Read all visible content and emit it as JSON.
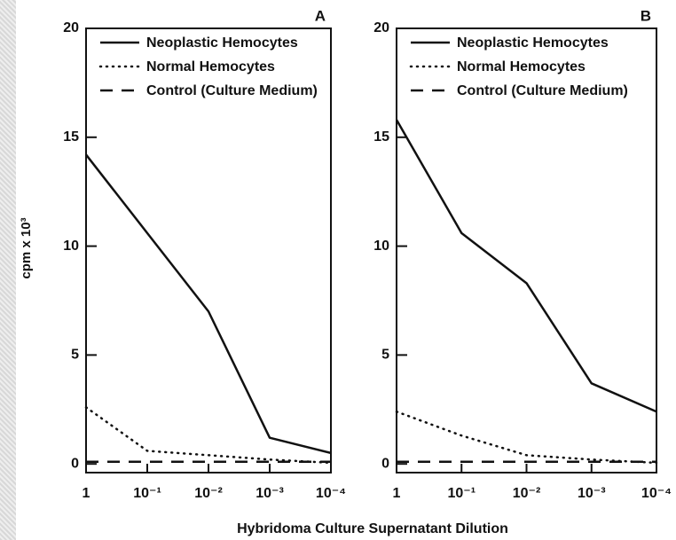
{
  "chart_data": [
    {
      "type": "line",
      "title": "A",
      "ylabel": "cpm x 10³",
      "xlabel": "Hybridoma Culture Supernatant Dilution",
      "xscale": "log",
      "xlim": [
        1,
        0.0001
      ],
      "xticks": [
        1,
        {
          "value": 0.1,
          "label": "10⁻¹"
        },
        {
          "value": 0.01,
          "label": "10⁻²"
        },
        {
          "value": 0.001,
          "label": "10⁻³"
        },
        {
          "value": 0.0001,
          "label": "10⁻⁴"
        }
      ],
      "ylim": [
        -0.4,
        20
      ],
      "yticks": [
        0,
        5,
        10,
        15,
        20
      ],
      "x": [
        1,
        0.1,
        0.01,
        0.001,
        0.0001
      ],
      "series": [
        {
          "name": "Neoplastic Hemocytes",
          "color": "#111111",
          "style": "solid",
          "values": [
            14.2,
            10.6,
            7.0,
            1.2,
            0.5
          ]
        },
        {
          "name": "Normal Hemocytes",
          "color": "#111111",
          "style": "dotted",
          "values": [
            2.6,
            0.6,
            0.4,
            0.2,
            0.05
          ]
        },
        {
          "name": "Control (Culture Medium)",
          "color": "#111111",
          "style": "dashed",
          "values": [
            0.1,
            0.1,
            0.1,
            0.1,
            0.1
          ]
        }
      ]
    },
    {
      "type": "line",
      "title": "B",
      "xscale": "log",
      "xlim": [
        1,
        0.0001
      ],
      "xticks": [
        1,
        {
          "value": 0.1,
          "label": "10⁻¹"
        },
        {
          "value": 0.01,
          "label": "10⁻²"
        },
        {
          "value": 0.001,
          "label": "10⁻³"
        },
        {
          "value": 0.0001,
          "label": "10⁻⁴"
        }
      ],
      "ylim": [
        -0.4,
        20
      ],
      "yticks": [
        0,
        5,
        10,
        15,
        20
      ],
      "x": [
        1,
        0.1,
        0.01,
        0.001,
        0.0001
      ],
      "series": [
        {
          "name": "Neoplastic Hemocytes",
          "color": "#111111",
          "style": "solid",
          "values": [
            15.8,
            10.6,
            8.3,
            3.7,
            2.4
          ]
        },
        {
          "name": "Normal Hemocytes",
          "color": "#111111",
          "style": "dotted",
          "values": [
            2.4,
            1.3,
            0.4,
            0.2,
            0.05
          ]
        },
        {
          "name": "Control (Culture Medium)",
          "color": "#111111",
          "style": "dashed",
          "values": [
            0.1,
            0.1,
            0.1,
            0.1,
            0.1
          ]
        }
      ]
    }
  ]
}
